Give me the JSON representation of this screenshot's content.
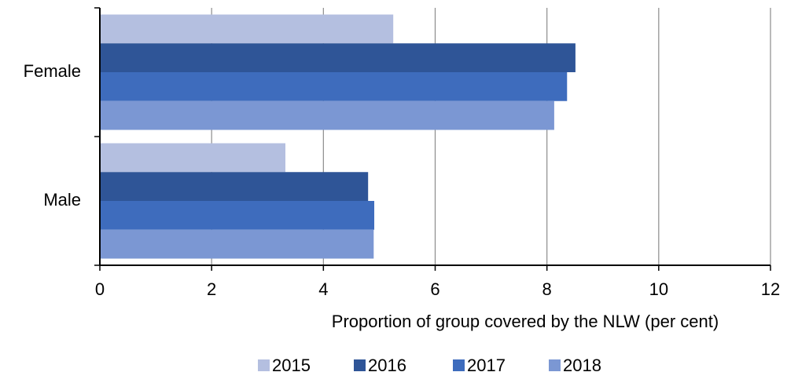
{
  "chart_data": {
    "type": "hbar",
    "x_label": "Proportion of group covered by the NLW (per cent)",
    "categories": [
      "Female",
      "Male"
    ],
    "series": [
      {
        "name": "2015",
        "color": "#b4bfe0",
        "values": [
          5.25,
          3.32
        ]
      },
      {
        "name": "2016",
        "color": "#2f5597",
        "values": [
          8.51,
          4.8
        ]
      },
      {
        "name": "2017",
        "color": "#3e6cbd",
        "values": [
          8.36,
          4.91
        ]
      },
      {
        "name": "2018",
        "color": "#7b97d3",
        "values": [
          8.13,
          4.9
        ]
      }
    ],
    "xlim": [
      0,
      12
    ],
    "xticks": [
      0,
      2,
      4,
      6,
      8,
      10,
      12
    ],
    "grid": true,
    "legend": "bottom"
  }
}
